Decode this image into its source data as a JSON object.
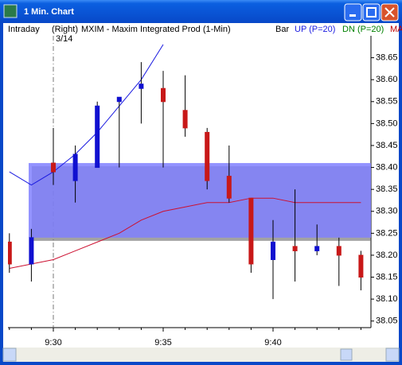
{
  "chart_data": {
    "type": "candlestick",
    "title": "1 Min. Chart",
    "labels": {
      "left": "Intraday",
      "source": "(Right)",
      "symbol": "MXIM - Maxim Integrated Prod (1-Min)",
      "bar": "Bar",
      "ma": "MA"
    },
    "annotation": "3/14",
    "categories": [
      null,
      null,
      "9:30",
      null,
      null,
      null,
      null,
      "9:35",
      null,
      null,
      null,
      null,
      "9:40",
      null,
      null,
      null,
      null
    ],
    "open": [
      38.23,
      38.18,
      38.41,
      38.37,
      38.4,
      38.55,
      38.58,
      38.58,
      38.53,
      38.48,
      38.38,
      38.33,
      38.19,
      38.22,
      38.21,
      38.22,
      38.2
    ],
    "high": [
      38.25,
      38.26,
      38.49,
      38.45,
      38.55,
      38.56,
      38.64,
      38.62,
      38.61,
      38.49,
      38.45,
      38.33,
      38.28,
      38.35,
      38.27,
      38.24,
      38.21
    ],
    "low": [
      38.16,
      38.14,
      38.36,
      38.32,
      38.4,
      38.4,
      38.5,
      38.4,
      38.47,
      38.35,
      38.32,
      38.16,
      38.1,
      38.14,
      38.2,
      38.13,
      38.12
    ],
    "close": [
      38.18,
      38.24,
      38.39,
      38.43,
      38.54,
      38.56,
      38.59,
      38.55,
      38.49,
      38.37,
      38.33,
      38.18,
      38.23,
      38.21,
      38.22,
      38.2,
      38.15
    ],
    "up_color": "#1010d0",
    "down_color": "#c81818",
    "series": [
      {
        "name": "UP (P=20)",
        "color": "#1a1ae0",
        "values": [
          38.39,
          38.36,
          38.39,
          38.43,
          38.48,
          38.54,
          38.6,
          38.68,
          null,
          null,
          null,
          null,
          null,
          null,
          null,
          null,
          null
        ]
      },
      {
        "name": "DN (P=20)",
        "color": "#cc1030",
        "label_color": "#008000",
        "values": [
          38.17,
          38.18,
          38.19,
          38.21,
          38.23,
          38.25,
          38.28,
          38.3,
          38.31,
          38.32,
          38.32,
          38.33,
          38.33,
          38.32,
          38.32,
          38.32,
          38.32
        ]
      }
    ],
    "band": {
      "from": 38.24,
      "to": 38.41,
      "color": "#8080ff"
    },
    "ylim": [
      38.035,
      38.7
    ],
    "yticks": [
      38.65,
      {
        "value": 38.6,
        "label": "38.60"
      },
      38.55,
      {
        "value": 38.5,
        "label": "38.50"
      },
      38.45,
      {
        "value": 38.4,
        "label": "38.40"
      },
      38.35,
      {
        "value": 38.3,
        "label": "38.30"
      },
      38.25,
      {
        "value": 38.2,
        "label": "38.20"
      },
      38.15,
      {
        "value": 38.1,
        "label": "38.10"
      },
      38.05
    ]
  }
}
